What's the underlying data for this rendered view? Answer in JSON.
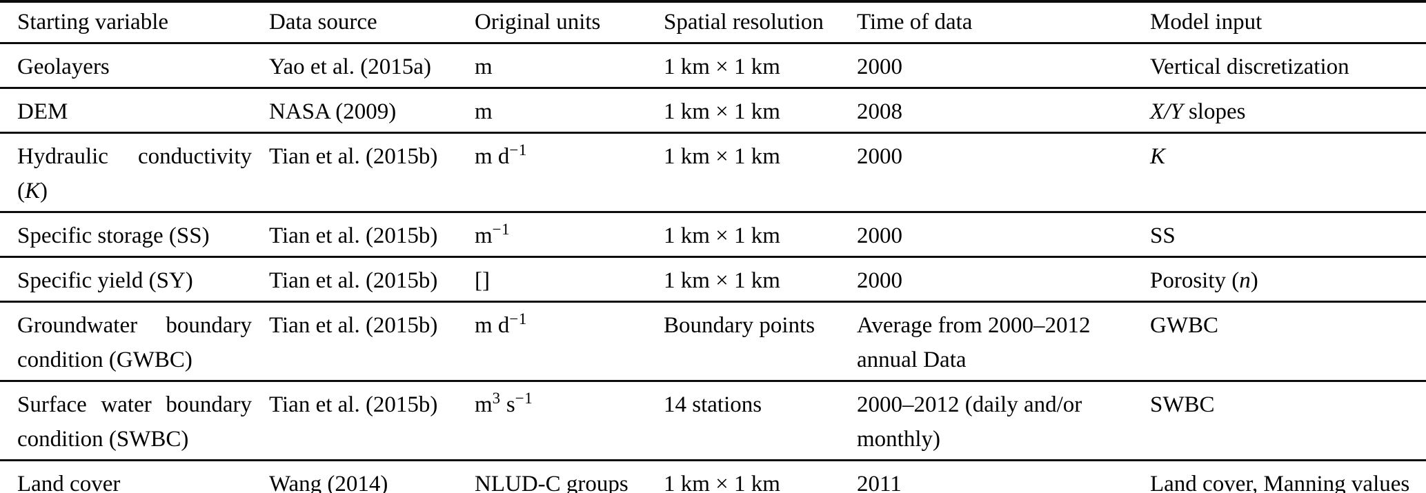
{
  "table": {
    "columns": [
      "Starting variable",
      "Data source",
      "Original units",
      "Spatial resolution",
      "Time of data",
      "Model input"
    ],
    "rows": [
      {
        "variable_pre": "Geolayers",
        "source": "Yao et al. (2015a)",
        "units_u1": "m",
        "resolution": "1 km × 1 km",
        "time": "2000",
        "input_pre": "Vertical discretization"
      },
      {
        "variable_pre": "DEM",
        "source": "NASA (2009)",
        "units_u1": "m",
        "resolution": "1 km × 1 km",
        "time": "2008",
        "input_it": "X/Y",
        "input_post": " slopes"
      },
      {
        "variable_pre": "Hydraulic conductivity (",
        "variable_it": "K",
        "variable_post": ")",
        "source": "Tian et al. (2015b)",
        "units_u1": "m d",
        "units_s1": "−1",
        "resolution": "1 km × 1 km",
        "time": "2000",
        "input_it": "K"
      },
      {
        "variable_pre": "Specific storage (SS)",
        "source": "Tian et al. (2015b)",
        "units_u1": "m",
        "units_s1": "−1",
        "resolution": "1 km × 1 km",
        "time": "2000",
        "input_pre": "SS"
      },
      {
        "variable_pre": "Specific yield (SY)",
        "source": "Tian et al. (2015b)",
        "units_u1": "[]",
        "resolution": "1 km × 1 km",
        "time": "2000",
        "input_pre": "Porosity (",
        "input_it": "n",
        "input_post": ")"
      },
      {
        "variable_pre": "Groundwater boundary condition (GWBC)",
        "source": "Tian et al. (2015b)",
        "units_u1": "m d",
        "units_s1": "−1",
        "resolution": "Boundary points",
        "time": "Average from 2000–2012 annual Data",
        "input_pre": "GWBC"
      },
      {
        "variable_pre": "Surface water boundary condition (SWBC)",
        "source": "Tian et al. (2015b)",
        "units_u1": "m",
        "units_s1": "3",
        "units_u2": " s",
        "units_s2": "−1",
        "resolution": "14 stations",
        "time": "2000–2012 (daily and/or monthly)",
        "input_pre": "SWBC"
      },
      {
        "variable_pre": "Land cover",
        "source": "Wang (2014)",
        "units_u1": "NLUD-C groups",
        "resolution": "1 km × 1 km",
        "time": "2011",
        "input_pre": "Land cover, Manning values"
      }
    ]
  }
}
